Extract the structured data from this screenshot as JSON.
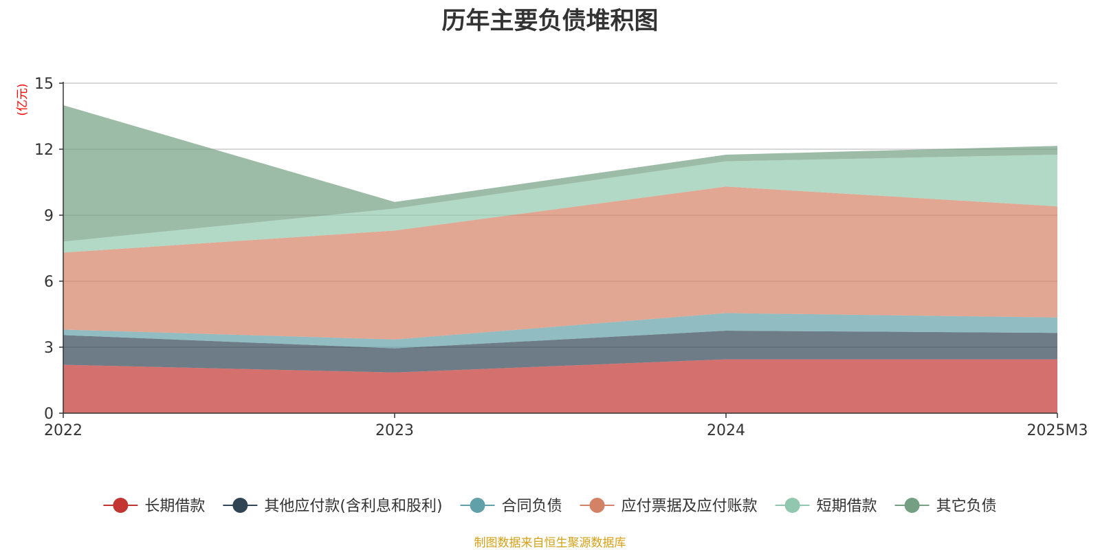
{
  "chart_data": {
    "type": "area",
    "stacked": true,
    "title": "历年主要负债堆积图",
    "ylabel": "(亿元)",
    "categories": [
      "2022",
      "2023",
      "2024",
      "2025M3"
    ],
    "ylim": [
      0,
      15
    ],
    "yticks": [
      0,
      3,
      6,
      9,
      12,
      15
    ],
    "grid": true,
    "legend_position": "bottom",
    "series": [
      {
        "name": "长期借款",
        "color": "#c23531",
        "values": [
          2.2,
          1.85,
          2.45,
          2.45
        ]
      },
      {
        "name": "其他应付款(含利息和股利)",
        "color": "#2f4554",
        "values": [
          1.35,
          1.1,
          1.3,
          1.2
        ]
      },
      {
        "name": "合同负债",
        "color": "#61a0a8",
        "values": [
          0.25,
          0.4,
          0.8,
          0.7
        ]
      },
      {
        "name": "应付票据及应付账款",
        "color": "#d48265",
        "values": [
          3.5,
          4.95,
          5.75,
          5.05
        ]
      },
      {
        "name": "短期借款",
        "color": "#91c7ae",
        "values": [
          0.5,
          1.0,
          1.15,
          2.35
        ]
      },
      {
        "name": "其它负债",
        "color": "#749f83",
        "values": [
          6.2,
          0.3,
          0.3,
          0.4
        ]
      }
    ]
  },
  "source_note": "制图数据来自恒生聚源数据库",
  "colors": {
    "unit_label": "#ff0000",
    "source_note": "#d4a017",
    "axis": "#333333",
    "grid": "#cccccc"
  }
}
